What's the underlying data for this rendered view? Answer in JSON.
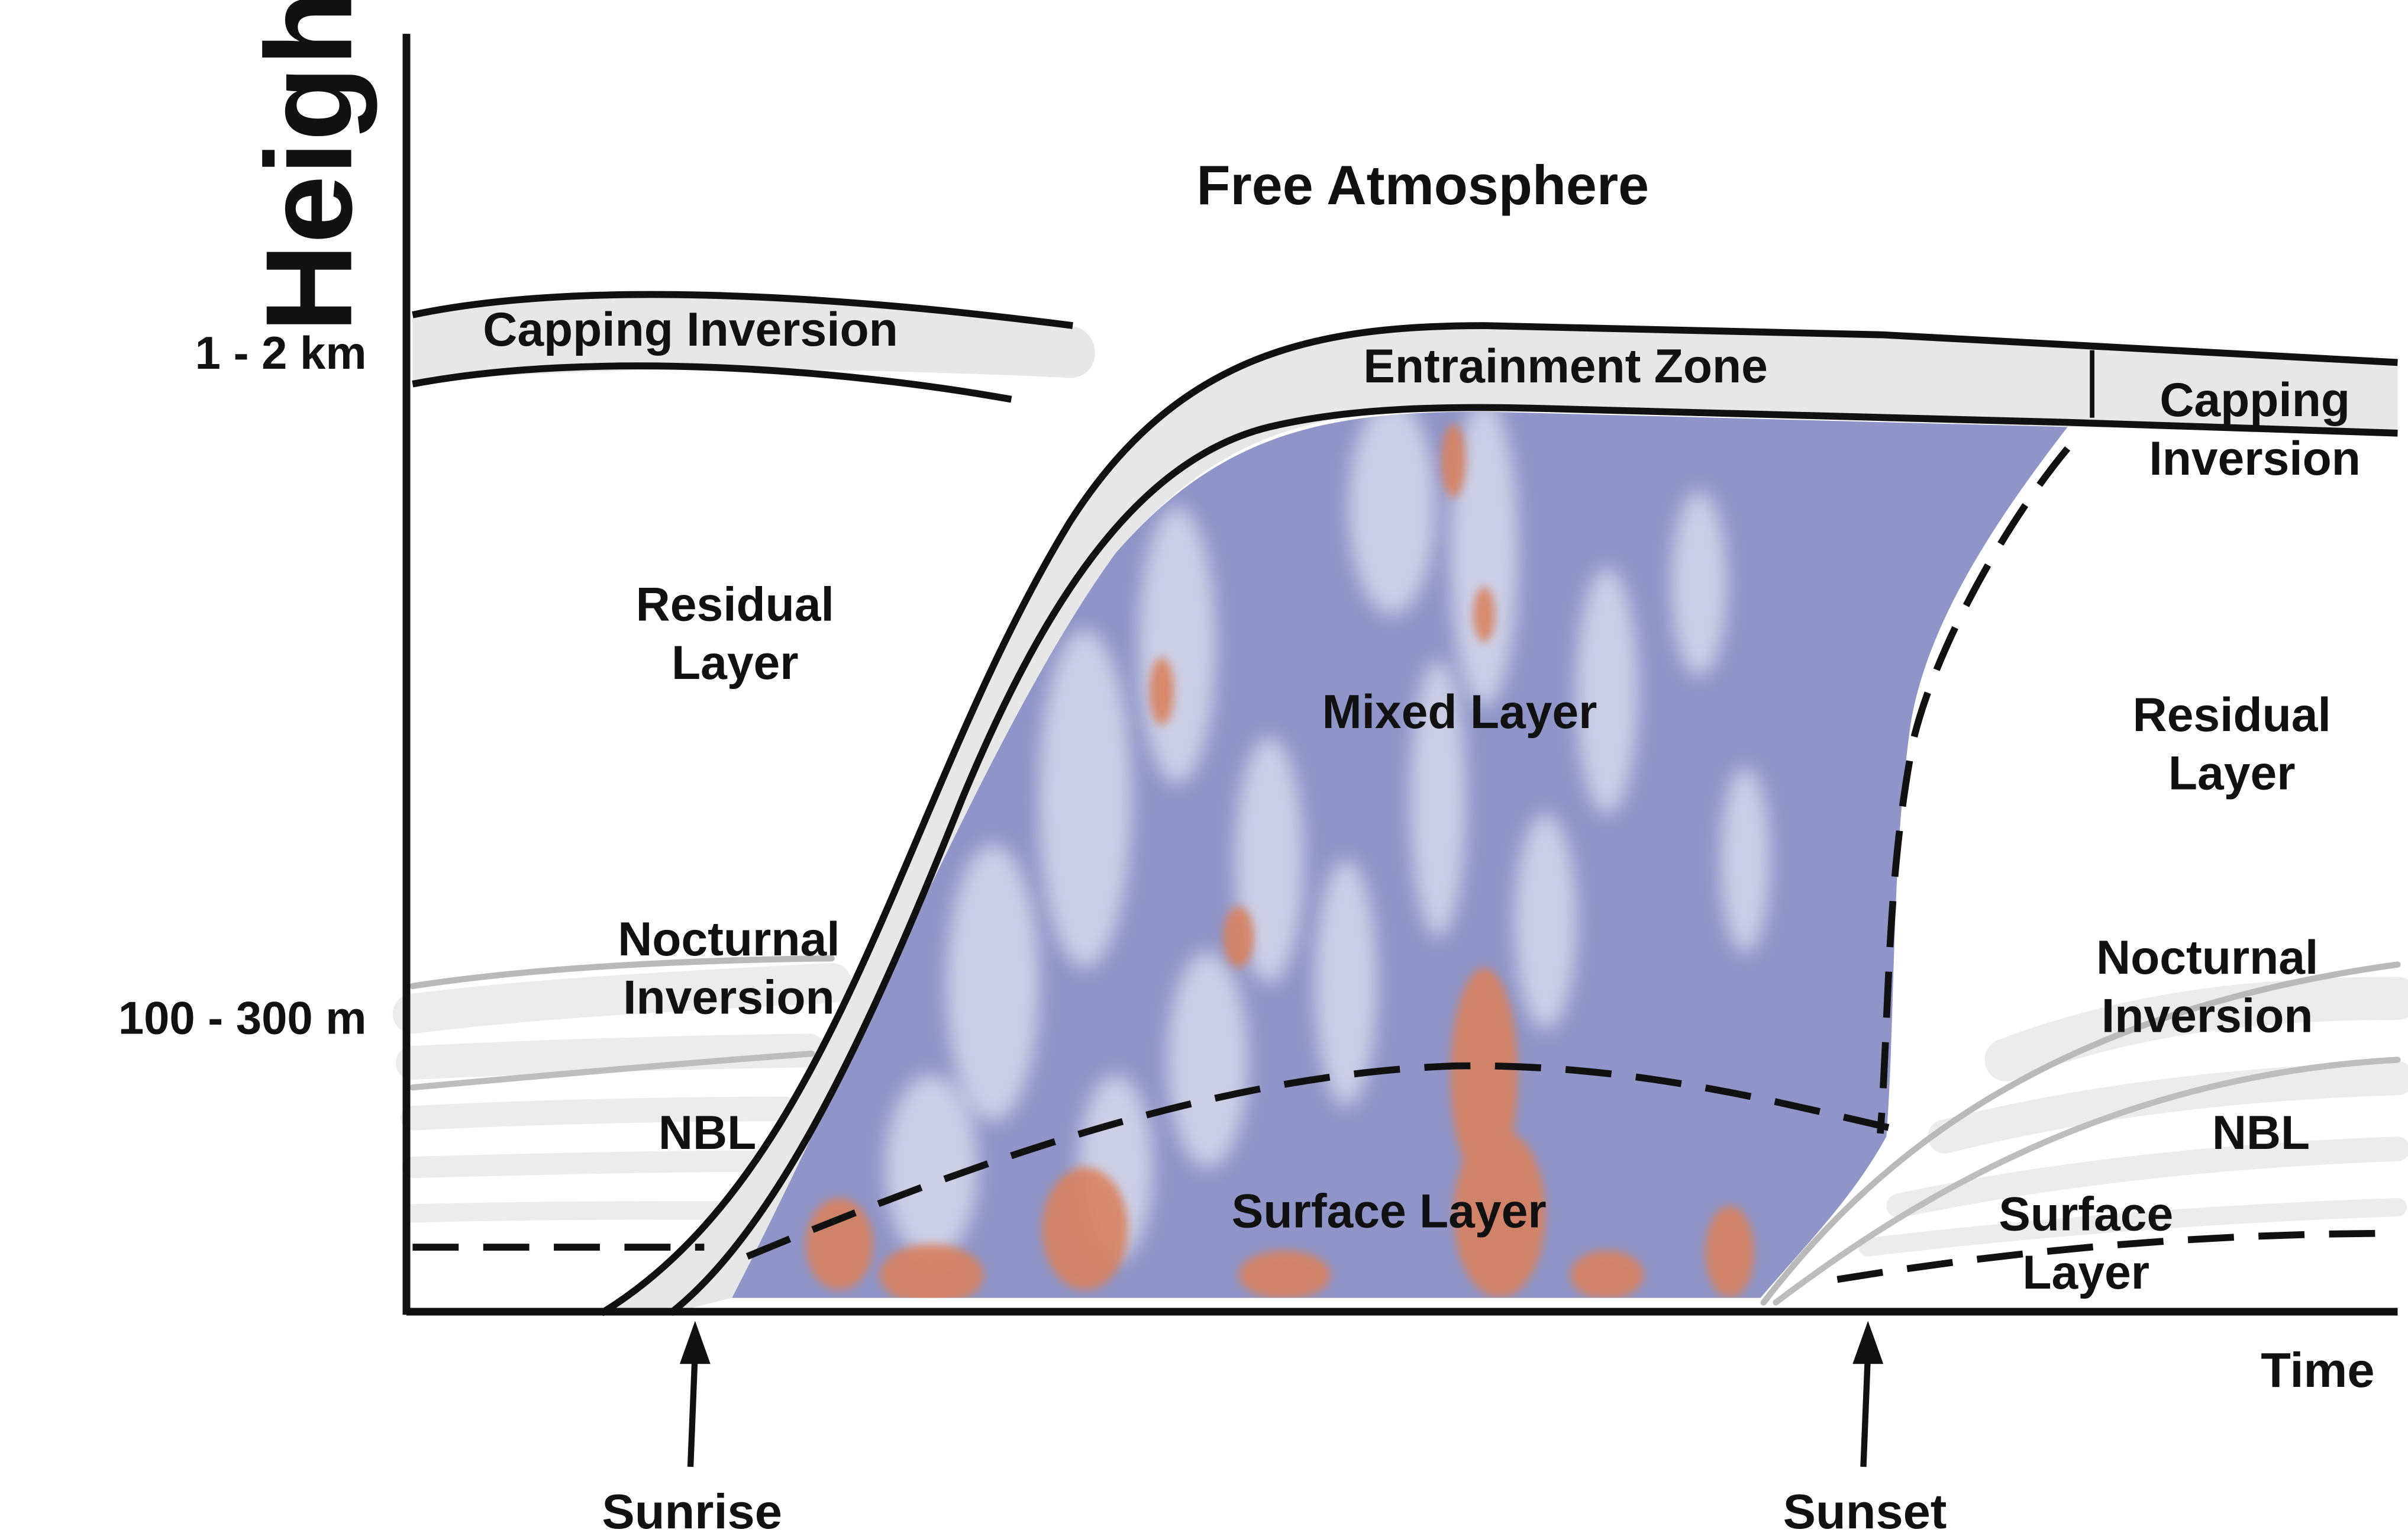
{
  "axes": {
    "y_label": "Height",
    "x_label": "Time",
    "y_ticks": [
      "1 - 2 km",
      "100 -  300 m"
    ],
    "x_markers": [
      "Sunrise",
      "Sunset"
    ]
  },
  "regions": {
    "free_atmosphere": "Free Atmosphere",
    "capping_inversion_left": "Capping Inversion",
    "entrainment_zone": "Entrainment Zone",
    "capping_inversion_right": [
      "Capping",
      "Inversion"
    ],
    "residual_layer_left": [
      "Residual",
      "Layer"
    ],
    "residual_layer_right": [
      "Residual",
      "Layer"
    ],
    "mixed_layer": "Mixed Layer",
    "nocturnal_inversion_left": [
      "Nocturnal",
      "Inversion"
    ],
    "nocturnal_inversion_right": [
      "Nocturnal",
      "Inversion"
    ],
    "nbl_left": "NBL",
    "nbl_right": "NBL",
    "surface_layer_mid": "Surface Layer",
    "surface_layer_right": [
      "Surface",
      "Layer"
    ]
  },
  "colors": {
    "mixed_layer_fill": "#8f95c8",
    "turbulence_warm": "#d9825e",
    "inversion_fill": "#e7e7e7",
    "nocturnal_lines": "#bdbdbd",
    "ink": "#111111"
  }
}
